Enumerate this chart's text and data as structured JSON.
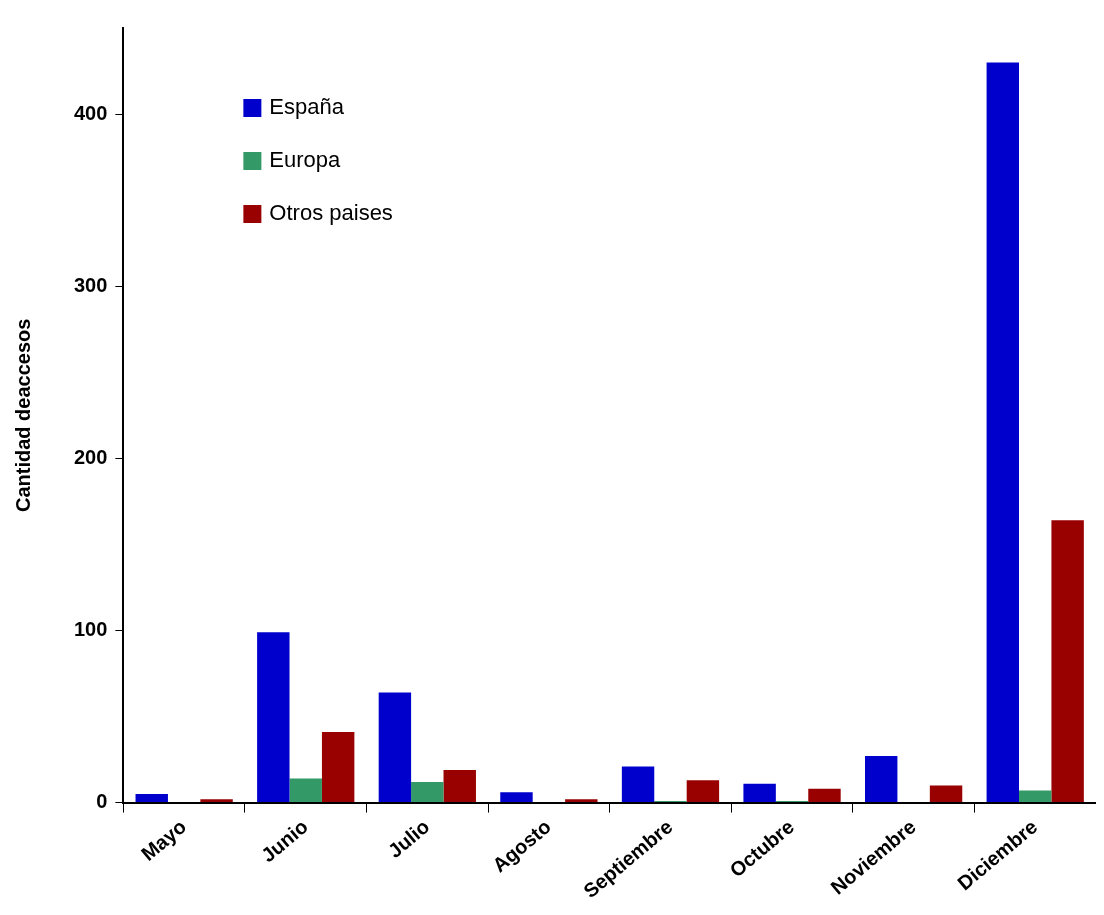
{
  "chart_data": {
    "type": "bar",
    "ylabel": "Cantidad deaccesos",
    "categories": [
      "Mayo",
      "Junio",
      "Julio",
      "Agosto",
      "Septiembre",
      "Octubre",
      "Noviembre",
      "Diciembre"
    ],
    "series": [
      {
        "name": "España",
        "color": "#0000cc",
        "values": [
          5,
          99,
          64,
          6,
          21,
          11,
          27,
          430
        ]
      },
      {
        "name": "Europa",
        "color": "#339966",
        "values": [
          0,
          14,
          12,
          0,
          1,
          1,
          0,
          7
        ]
      },
      {
        "name": "Otros paises",
        "color": "#990000",
        "values": [
          2,
          41,
          19,
          2,
          13,
          8,
          10,
          164
        ]
      }
    ],
    "ylim": [
      0,
      450
    ],
    "yticks": [
      0,
      100,
      200,
      300,
      400
    ],
    "grid": false,
    "legend": "top left"
  }
}
